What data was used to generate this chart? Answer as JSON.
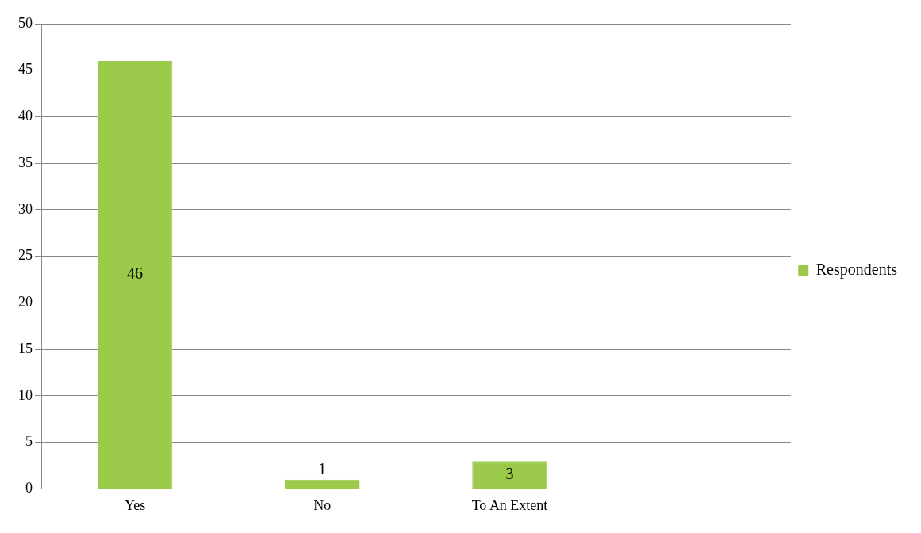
{
  "chart_data": {
    "type": "bar",
    "categories": [
      "Yes",
      "No",
      "To An Extent",
      null
    ],
    "series": [
      {
        "name": "Respondents",
        "color": "#9bc94a",
        "values": [
          46,
          1,
          3,
          null
        ]
      }
    ],
    "ylim": [
      0,
      50
    ],
    "yticks": [
      0,
      5,
      10,
      15,
      20,
      25,
      30,
      35,
      40,
      45,
      50
    ],
    "grid": "y",
    "legend": "right",
    "data_labels": true
  }
}
